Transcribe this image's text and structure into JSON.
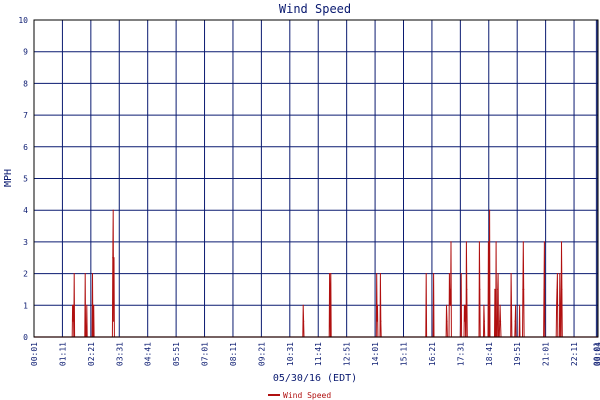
{
  "chart_data": {
    "type": "line",
    "title": "Wind Speed",
    "xlabel": "05/30/16 (EDT)",
    "ylabel": "MPH",
    "ylim": [
      0,
      10
    ],
    "yticks": [
      0,
      1,
      2,
      3,
      4,
      5,
      6,
      7,
      8,
      9,
      10
    ],
    "x_unit": "minutes after midnight",
    "xlim": [
      61,
      1450
    ],
    "xticks": [
      {
        "t": 61,
        "label": "00:01"
      },
      {
        "t": 131,
        "label": "01:11"
      },
      {
        "t": 201,
        "label": "02:21"
      },
      {
        "t": 271,
        "label": "03:31"
      },
      {
        "t": 341,
        "label": "04:41"
      },
      {
        "t": 411,
        "label": "05:51"
      },
      {
        "t": 481,
        "label": "07:01"
      },
      {
        "t": 551,
        "label": "08:11"
      },
      {
        "t": 621,
        "label": "09:21"
      },
      {
        "t": 691,
        "label": "10:31"
      },
      {
        "t": 761,
        "label": "11:41"
      },
      {
        "t": 831,
        "label": "12:51"
      },
      {
        "t": 901,
        "label": "14:01"
      },
      {
        "t": 971,
        "label": "15:11"
      },
      {
        "t": 1041,
        "label": "16:21"
      },
      {
        "t": 1111,
        "label": "17:31"
      },
      {
        "t": 1181,
        "label": "18:41"
      },
      {
        "t": 1251,
        "label": "19:51"
      },
      {
        "t": 1321,
        "label": "21:01"
      },
      {
        "t": 1391,
        "label": "22:11"
      },
      {
        "t": 1446,
        "label": "00:01"
      },
      {
        "t": 1449,
        "label": "00:04"
      }
    ],
    "grid": true,
    "legend_position": "bottom-center",
    "series": [
      {
        "name": "Wind Speed",
        "color": "#b01010",
        "points": [
          [
            155,
            0
          ],
          [
            156,
            1
          ],
          [
            157,
            0.5
          ],
          [
            158,
            1
          ],
          [
            159,
            0
          ],
          [
            160,
            2
          ],
          [
            161,
            0
          ],
          [
            186,
            0
          ],
          [
            187,
            2
          ],
          [
            188,
            0
          ],
          [
            190,
            0
          ],
          [
            191,
            1
          ],
          [
            192,
            0
          ],
          [
            204,
            0
          ],
          [
            205,
            2
          ],
          [
            206,
            0
          ],
          [
            207,
            0
          ],
          [
            208,
            1
          ],
          [
            209,
            0
          ],
          [
            254,
            0
          ],
          [
            255,
            2.5
          ],
          [
            256,
            4
          ],
          [
            257,
            0.5
          ],
          [
            258,
            2.5
          ],
          [
            259,
            0
          ],
          [
            723,
            0
          ],
          [
            724,
            1
          ],
          [
            725,
            0.5
          ],
          [
            726,
            0
          ],
          [
            788,
            0
          ],
          [
            789,
            2
          ],
          [
            790,
            1
          ],
          [
            791,
            0
          ],
          [
            792,
            2
          ],
          [
            793,
            0
          ],
          [
            904,
            0
          ],
          [
            905,
            2
          ],
          [
            906,
            0.5
          ],
          [
            907,
            1
          ],
          [
            908,
            0
          ],
          [
            913,
            0
          ],
          [
            914,
            2
          ],
          [
            915,
            0.5
          ],
          [
            916,
            0
          ],
          [
            1026,
            0
          ],
          [
            1027,
            2
          ],
          [
            1028,
            0
          ],
          [
            1044,
            0
          ],
          [
            1045,
            2
          ],
          [
            1046,
            0
          ],
          [
            1076,
            0
          ],
          [
            1077,
            1
          ],
          [
            1078,
            0.5
          ],
          [
            1079,
            0
          ],
          [
            1083,
            0
          ],
          [
            1084,
            2
          ],
          [
            1085,
            1
          ],
          [
            1086,
            1.5
          ],
          [
            1087,
            1
          ],
          [
            1088,
            3
          ],
          [
            1089,
            0
          ],
          [
            1111,
            0
          ],
          [
            1112,
            1
          ],
          [
            1113,
            2
          ],
          [
            1114,
            0
          ],
          [
            1120,
            0
          ],
          [
            1121,
            1
          ],
          [
            1122,
            0.5
          ],
          [
            1123,
            1
          ],
          [
            1124,
            0
          ],
          [
            1125,
            0
          ],
          [
            1126,
            3
          ],
          [
            1127,
            1.5
          ],
          [
            1128,
            0
          ],
          [
            1157,
            0
          ],
          [
            1158,
            3
          ],
          [
            1159,
            1.5
          ],
          [
            1160,
            0
          ],
          [
            1168,
            0
          ],
          [
            1169,
            1
          ],
          [
            1170,
            0.5
          ],
          [
            1171,
            0
          ],
          [
            1179,
            0
          ],
          [
            1180,
            3
          ],
          [
            1181,
            0
          ],
          [
            1182,
            0
          ],
          [
            1183,
            4
          ],
          [
            1184,
            0
          ],
          [
            1195,
            0
          ],
          [
            1196,
            1.5
          ],
          [
            1197,
            0
          ],
          [
            1198,
            0
          ],
          [
            1199,
            3
          ],
          [
            1200,
            0
          ],
          [
            1202,
            0
          ],
          [
            1203,
            1.5
          ],
          [
            1204,
            2
          ],
          [
            1205,
            0
          ],
          [
            1207,
            0
          ],
          [
            1208,
            0.5
          ],
          [
            1209,
            1
          ],
          [
            1210,
            0.5
          ],
          [
            1211,
            0
          ],
          [
            1235,
            0
          ],
          [
            1236,
            2
          ],
          [
            1237,
            1
          ],
          [
            1238,
            0
          ],
          [
            1245,
            0
          ],
          [
            1246,
            0.5
          ],
          [
            1247,
            1
          ],
          [
            1248,
            0
          ],
          [
            1256,
            0
          ],
          [
            1257,
            1
          ],
          [
            1258,
            0
          ],
          [
            1264,
            0
          ],
          [
            1265,
            1.5
          ],
          [
            1266,
            3
          ],
          [
            1267,
            1.5
          ],
          [
            1268,
            0
          ],
          [
            1316,
            0
          ],
          [
            1317,
            1.5
          ],
          [
            1318,
            3
          ],
          [
            1319,
            0
          ],
          [
            1347,
            0
          ],
          [
            1348,
            1
          ],
          [
            1349,
            1.5
          ],
          [
            1350,
            2
          ],
          [
            1351,
            0
          ],
          [
            1355,
            0
          ],
          [
            1356,
            2
          ],
          [
            1357,
            1
          ],
          [
            1358,
            0
          ],
          [
            1359,
            0
          ],
          [
            1360,
            3
          ],
          [
            1361,
            1.5
          ],
          [
            1362,
            0
          ]
        ]
      }
    ],
    "colors": {
      "background": "#ffffff",
      "plot_frame": "#000000",
      "grid": "#0a1a70",
      "title": "#0a1a70",
      "axis_text": "#0a1a70"
    }
  }
}
